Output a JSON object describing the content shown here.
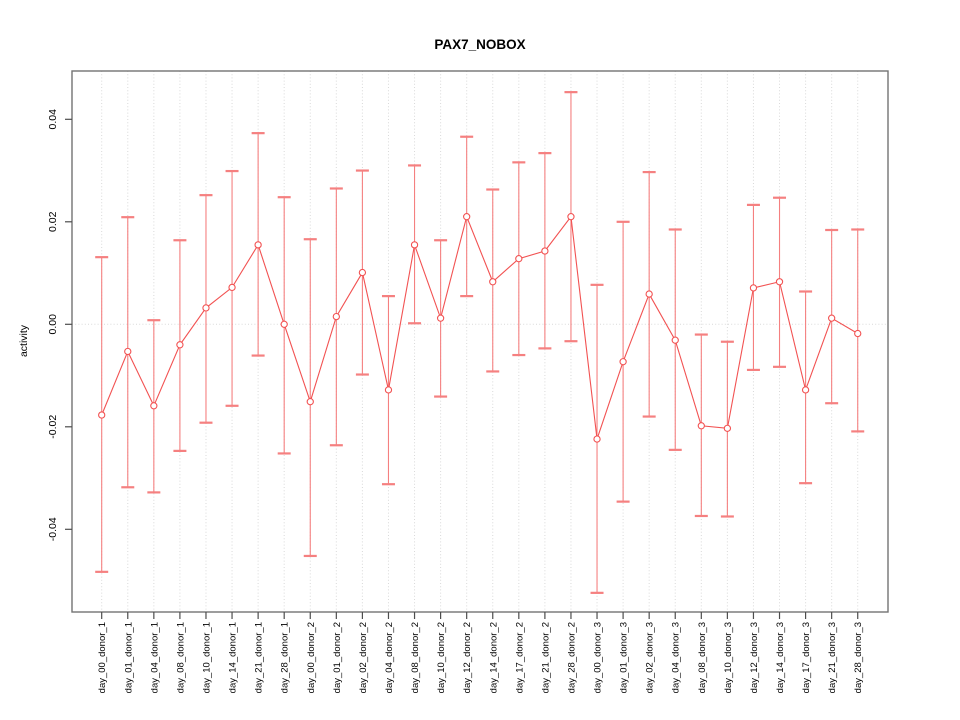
{
  "chart_data": {
    "type": "line",
    "title": "PAX7_NOBOX",
    "xlabel": "",
    "ylabel": "activity",
    "ylim": [
      -0.056,
      0.0495
    ],
    "yticks": [
      -0.04,
      -0.02,
      0.0,
      0.02,
      0.04
    ],
    "ytick_labels": [
      "-0.04",
      "-0.02",
      "0.00",
      "0.02",
      "0.04"
    ],
    "grid": "vertical dotted gridline at every category; horizontal dotted line at y=0",
    "legend": "none",
    "marker": "open-circle",
    "error_bars": true,
    "categories": [
      "day_00_donor_1",
      "day_01_donor_1",
      "day_04_donor_1",
      "day_08_donor_1",
      "day_10_donor_1",
      "day_14_donor_1",
      "day_21_donor_1",
      "day_28_donor_1",
      "day_00_donor_2",
      "day_01_donor_2",
      "day_02_donor_2",
      "day_04_donor_2",
      "day_08_donor_2",
      "day_10_donor_2",
      "day_12_donor_2",
      "day_14_donor_2",
      "day_17_donor_2",
      "day_21_donor_2",
      "day_28_donor_2",
      "day_00_donor_3",
      "day_01_donor_3",
      "day_02_donor_3",
      "day_04_donor_3",
      "day_08_donor_3",
      "day_10_donor_3",
      "day_12_donor_3",
      "day_14_donor_3",
      "day_17_donor_3",
      "day_21_donor_3",
      "day_28_donor_3"
    ],
    "values": [
      -0.0177,
      -0.0053,
      -0.0159,
      -0.004,
      0.0032,
      0.0072,
      0.0155,
      0.0,
      -0.0151,
      0.0015,
      0.0101,
      -0.0128,
      0.0155,
      0.0012,
      0.021,
      0.0083,
      0.0128,
      0.0143,
      0.021,
      -0.0224,
      -0.0073,
      0.0059,
      -0.0031,
      -0.0198,
      -0.0203,
      0.0071,
      0.0083,
      -0.0128,
      0.0012,
      -0.0018
    ],
    "upper": [
      0.0131,
      0.0209,
      0.0008,
      0.0164,
      0.0252,
      0.0299,
      0.0373,
      0.0248,
      0.0166,
      0.0265,
      0.03,
      0.0055,
      0.031,
      0.0164,
      0.0366,
      0.0263,
      0.0316,
      0.0334,
      0.0453,
      0.0077,
      0.02,
      0.0297,
      0.0185,
      -0.002,
      -0.0034,
      0.0233,
      0.0247,
      0.0064,
      0.0184,
      0.0185
    ],
    "lower": [
      -0.0483,
      -0.0318,
      -0.0328,
      -0.0247,
      -0.0192,
      -0.0159,
      -0.0061,
      -0.0252,
      -0.0452,
      -0.0236,
      -0.0098,
      -0.0312,
      0.0002,
      -0.0141,
      0.0055,
      -0.0092,
      -0.006,
      -0.0047,
      -0.0033,
      -0.0524,
      -0.0346,
      -0.018,
      -0.0245,
      -0.0374,
      -0.0375,
      -0.0089,
      -0.0083,
      -0.031,
      -0.0154,
      -0.0209
    ],
    "colors": {
      "series": "#f25252",
      "whisker": "#f58080",
      "cap": "#f58080",
      "marker_stroke": "#f25252",
      "marker_fill": "#ffffff",
      "gridline": "#d9d9d9",
      "frame": "#737373",
      "tick": "#4d4d4d",
      "text": "#000000",
      "background": "#ffffff"
    }
  }
}
